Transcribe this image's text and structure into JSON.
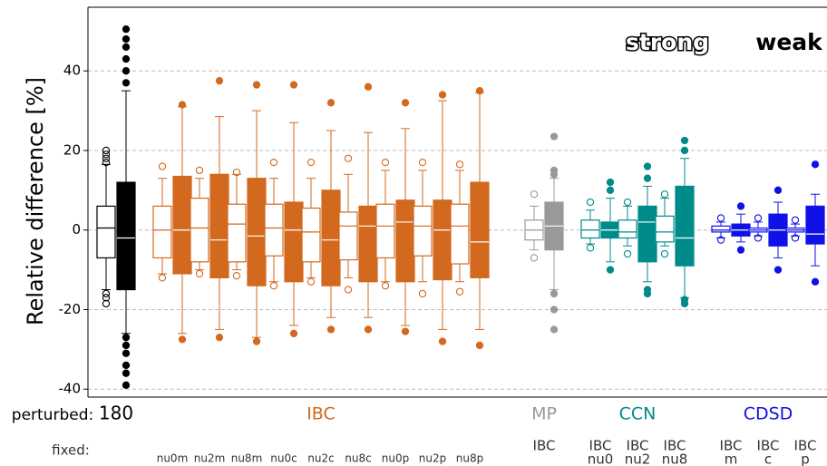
{
  "chart_data": {
    "type": "box",
    "y_label": "Relative difference [%]",
    "ylim": [
      -42,
      56
    ],
    "yticks": [
      -40,
      -20,
      0,
      20,
      40
    ],
    "grid": true,
    "perturbed_label": "perturbed:",
    "fixed_label": "fixed:",
    "series": [
      {
        "name": "strong",
        "fill": "open"
      },
      {
        "name": "weak",
        "fill": "filled"
      }
    ],
    "groups": [
      {
        "name": "180",
        "color": "#000000",
        "pairs": [
          {
            "strong": {
              "whislo": -15,
              "q1": -7,
              "med": 0.5,
              "q3": 6,
              "whishi": 16.5,
              "fliers": [
                17,
                18,
                19,
                20,
                -16,
                -17,
                -18.5
              ]
            },
            "weak": {
              "whislo": -26,
              "q1": -15,
              "med": -2,
              "q3": 12,
              "whishi": 35,
              "fliers": [
                37,
                40,
                43,
                46,
                48,
                50.5,
                -27,
                -29,
                -31,
                -34,
                -36,
                -39
              ]
            }
          }
        ]
      },
      {
        "name": "IBC",
        "color": "#d2691e",
        "pairs": [
          {
            "fixed": [
              "nu0m"
            ],
            "strong": {
              "whislo": -11,
              "q1": -7,
              "med": 0,
              "q3": 6,
              "whishi": 13,
              "fliers": [
                16,
                -12
              ]
            },
            "weak": {
              "whislo": -26,
              "q1": -11,
              "med": 0,
              "q3": 13.5,
              "whishi": 31,
              "fliers": [
                31.5,
                -27.5
              ]
            }
          },
          {
            "fixed": [
              "nu2m"
            ],
            "strong": {
              "whislo": -10,
              "q1": -8,
              "med": 0.5,
              "q3": 8,
              "whishi": 13,
              "fliers": [
                15,
                -11
              ]
            },
            "weak": {
              "whislo": -25,
              "q1": -12,
              "med": -2.5,
              "q3": 14,
              "whishi": 28.5,
              "fliers": [
                37.5,
                -27
              ]
            }
          },
          {
            "fixed": [
              "nu8m"
            ],
            "strong": {
              "whislo": -10,
              "q1": -8,
              "med": 1.5,
              "q3": 6.5,
              "whishi": 14,
              "fliers": [
                14.5,
                -11.5
              ]
            },
            "weak": {
              "whislo": -27,
              "q1": -14,
              "med": -1.5,
              "q3": 13,
              "whishi": 30,
              "fliers": [
                36.5,
                -28
              ]
            }
          },
          {
            "fixed": [
              "nu0c"
            ],
            "strong": {
              "whislo": -13,
              "q1": -6.5,
              "med": 0.5,
              "q3": 6.5,
              "whishi": 13,
              "fliers": [
                17,
                -14
              ]
            },
            "weak": {
              "whislo": -24,
              "q1": -13,
              "med": 0,
              "q3": 7,
              "whishi": 27,
              "fliers": [
                36.5,
                -26
              ]
            }
          },
          {
            "fixed": [
              "nu2c"
            ],
            "strong": {
              "whislo": -12,
              "q1": -8,
              "med": -0.5,
              "q3": 5.5,
              "whishi": 13,
              "fliers": [
                17,
                -13
              ]
            },
            "weak": {
              "whislo": -22,
              "q1": -14,
              "med": -2.5,
              "q3": 10,
              "whishi": 25,
              "fliers": [
                32,
                -25
              ]
            }
          },
          {
            "fixed": [
              "nu8c"
            ],
            "strong": {
              "whislo": -12,
              "q1": -7.5,
              "med": 1,
              "q3": 4.5,
              "whishi": 14,
              "fliers": [
                18,
                -15
              ]
            },
            "weak": {
              "whislo": -22,
              "q1": -13,
              "med": 1,
              "q3": 6,
              "whishi": 24.5,
              "fliers": [
                36,
                -25
              ]
            }
          },
          {
            "fixed": [
              "nu0p"
            ],
            "strong": {
              "whislo": -13,
              "q1": -7,
              "med": 1,
              "q3": 6.5,
              "whishi": 15,
              "fliers": [
                17,
                -14
              ]
            },
            "weak": {
              "whislo": -24,
              "q1": -13,
              "med": 2,
              "q3": 7.5,
              "whishi": 25.5,
              "fliers": [
                32,
                -25.5
              ]
            }
          },
          {
            "fixed": [
              "nu2p"
            ],
            "strong": {
              "whislo": -13,
              "q1": -6.5,
              "med": 1,
              "q3": 6,
              "whishi": 15,
              "fliers": [
                17,
                -16
              ]
            },
            "weak": {
              "whislo": -25,
              "q1": -12.5,
              "med": 0,
              "q3": 7.5,
              "whishi": 32.5,
              "fliers": [
                34,
                -28
              ]
            }
          },
          {
            "fixed": [
              "nu8p"
            ],
            "strong": {
              "whislo": -13,
              "q1": -8.5,
              "med": 1,
              "q3": 6.5,
              "whishi": 15,
              "fliers": [
                16.5,
                -15.5
              ]
            },
            "weak": {
              "whislo": -25,
              "q1": -12,
              "med": -3,
              "q3": 12,
              "whishi": 34.5,
              "fliers": [
                35,
                -29
              ]
            }
          }
        ]
      },
      {
        "name": "MP",
        "color": "#999999",
        "pairs": [
          {
            "fixed": [
              "IBC"
            ],
            "strong": {
              "whislo": -5,
              "q1": -2.5,
              "med": 0,
              "q3": 2.5,
              "whishi": 6,
              "fliers": [
                9,
                -7
              ]
            },
            "weak": {
              "whislo": -15,
              "q1": -5,
              "med": 1,
              "q3": 7,
              "whishi": 13,
              "fliers": [
                14,
                15,
                23.5,
                -16,
                -20,
                -25
              ]
            }
          }
        ]
      },
      {
        "name": "CCN",
        "color": "#008b8b",
        "pairs": [
          {
            "fixed": [
              "IBC",
              "nu0"
            ],
            "strong": {
              "whislo": -3.5,
              "q1": -2,
              "med": 0,
              "q3": 2.5,
              "whishi": 5,
              "fliers": [
                7,
                -4.5
              ]
            },
            "weak": {
              "whislo": -8,
              "q1": -2,
              "med": 0,
              "q3": 2,
              "whishi": 8,
              "fliers": [
                10,
                12,
                -10
              ]
            }
          },
          {
            "fixed": [
              "IBC",
              "nu2"
            ],
            "strong": {
              "whislo": -4,
              "q1": -2,
              "med": -0.5,
              "q3": 2.5,
              "whishi": 6,
              "fliers": [
                7,
                -6
              ]
            },
            "weak": {
              "whislo": -13,
              "q1": -8,
              "med": 2,
              "q3": 6,
              "whishi": 11,
              "fliers": [
                13,
                16,
                -15,
                -16
              ]
            }
          },
          {
            "fixed": [
              "IBC",
              "nu8"
            ],
            "strong": {
              "whislo": -4,
              "q1": -3,
              "med": -0.5,
              "q3": 3.5,
              "whishi": 8,
              "fliers": [
                9,
                -6
              ]
            },
            "weak": {
              "whislo": -17,
              "q1": -9,
              "med": -2,
              "q3": 11,
              "whishi": 18,
              "fliers": [
                20,
                22.5,
                -17.5,
                -18.5
              ]
            }
          }
        ]
      },
      {
        "name": "CDSD",
        "color": "#1010e8",
        "pairs": [
          {
            "fixed": [
              "IBC",
              "m"
            ],
            "strong": {
              "whislo": -2,
              "q1": -0.5,
              "med": 0,
              "q3": 1,
              "whishi": 2,
              "fliers": [
                3,
                -2.5
              ]
            },
            "weak": {
              "whislo": -3,
              "q1": -1.5,
              "med": 0,
              "q3": 1.5,
              "whishi": 4,
              "fliers": [
                6,
                -5
              ]
            }
          },
          {
            "fixed": [
              "IBC",
              "c"
            ],
            "strong": {
              "whislo": -1.5,
              "q1": -0.5,
              "med": 0,
              "q3": 0.5,
              "whishi": 2,
              "fliers": [
                3,
                -2
              ]
            },
            "weak": {
              "whislo": -7,
              "q1": -4,
              "med": 0,
              "q3": 4,
              "whishi": 7,
              "fliers": [
                10,
                -10
              ]
            }
          },
          {
            "fixed": [
              "IBC",
              "p"
            ],
            "strong": {
              "whislo": -1.5,
              "q1": -0.5,
              "med": 0,
              "q3": 0.5,
              "whishi": 1.5,
              "fliers": [
                2.5,
                -2
              ]
            },
            "weak": {
              "whislo": -9,
              "q1": -3.5,
              "med": -1,
              "q3": 6,
              "whishi": 9,
              "fliers": [
                16.5,
                -13
              ]
            }
          }
        ]
      }
    ]
  }
}
